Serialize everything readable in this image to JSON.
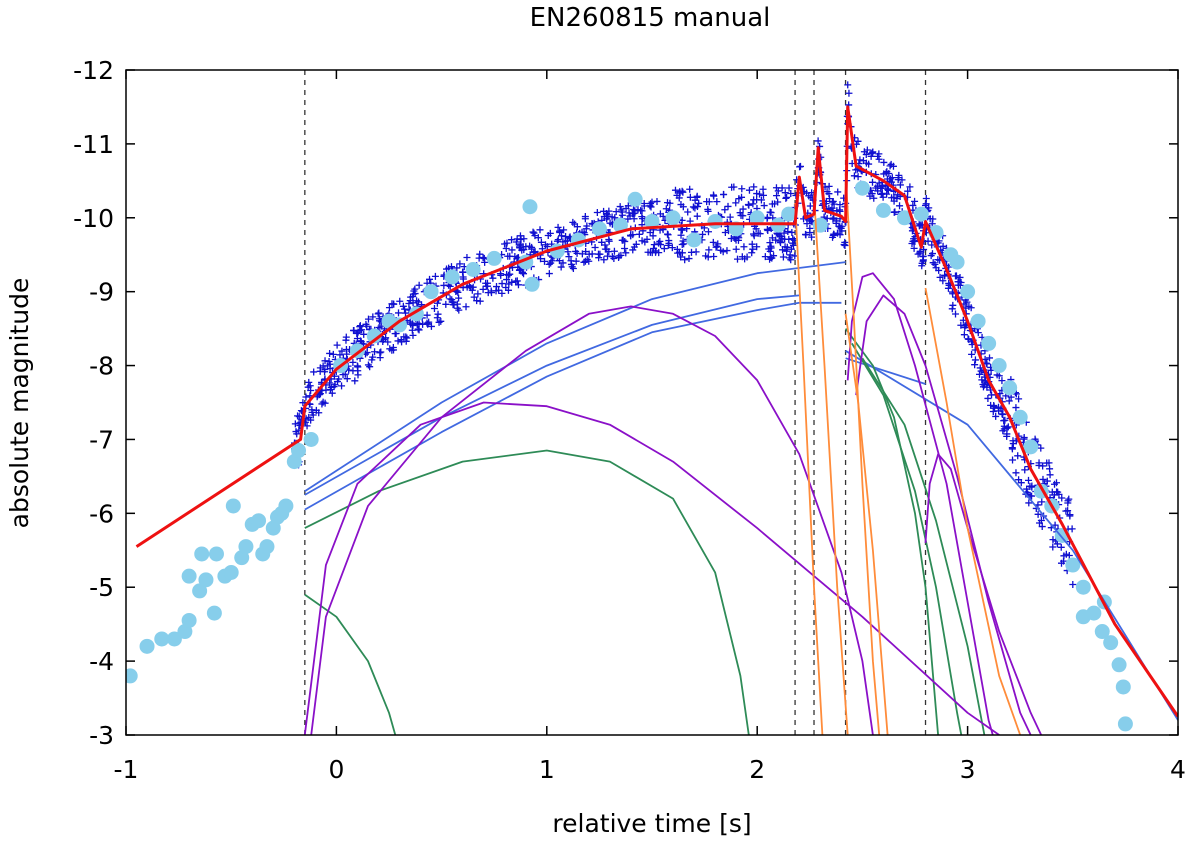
{
  "chart_data": {
    "type": "scatter",
    "title": "EN260815 manual",
    "xlabel": "relative time [s]",
    "ylabel": "absolute magnitude",
    "xlim": [
      -1,
      4
    ],
    "ylim": [
      -3,
      -12
    ],
    "x_ticks": [
      -1,
      0,
      1,
      2,
      3,
      4
    ],
    "y_ticks": [
      -3,
      -4,
      -5,
      -6,
      -7,
      -8,
      -9,
      -10,
      -11,
      -12
    ],
    "x_tick_labels": [
      "-1",
      "0",
      "1",
      "2",
      "3",
      "4"
    ],
    "y_tick_labels": [
      "-3",
      "-4",
      "-5",
      "-6",
      "-7",
      "-8",
      "-9",
      "-10",
      "-11",
      "-12"
    ],
    "vlines": [
      -0.15,
      2.18,
      2.27,
      2.42,
      2.8
    ],
    "colors": {
      "fit": "#ee1111",
      "dots": "#87ceeb",
      "plus": "#1010d0",
      "purple": "#8a10c8",
      "blue": "#4169e1",
      "green": "#2e8b57",
      "orange": "#ff8c3a",
      "vline": "#333333"
    },
    "dots": [
      [
        -0.98,
        -3.8
      ],
      [
        -0.9,
        -4.2
      ],
      [
        -0.83,
        -4.3
      ],
      [
        -0.77,
        -4.3
      ],
      [
        -0.72,
        -4.4
      ],
      [
        -0.7,
        -4.55
      ],
      [
        -0.7,
        -5.15
      ],
      [
        -0.65,
        -4.95
      ],
      [
        -0.64,
        -5.45
      ],
      [
        -0.62,
        -5.1
      ],
      [
        -0.58,
        -4.65
      ],
      [
        -0.57,
        -5.45
      ],
      [
        -0.53,
        -5.15
      ],
      [
        -0.5,
        -5.2
      ],
      [
        -0.49,
        -6.1
      ],
      [
        -0.45,
        -5.4
      ],
      [
        -0.43,
        -5.55
      ],
      [
        -0.4,
        -5.85
      ],
      [
        -0.37,
        -5.9
      ],
      [
        -0.35,
        -5.45
      ],
      [
        -0.33,
        -5.55
      ],
      [
        -0.3,
        -5.8
      ],
      [
        -0.28,
        -5.95
      ],
      [
        -0.26,
        -6.0
      ],
      [
        -0.24,
        -6.1
      ],
      [
        -0.2,
        -6.7
      ],
      [
        -0.18,
        -6.85
      ],
      [
        -0.12,
        -7.0
      ],
      [
        0.02,
        -8.0
      ],
      [
        0.1,
        -8.2
      ],
      [
        0.18,
        -8.4
      ],
      [
        0.25,
        -8.6
      ],
      [
        0.3,
        -8.55
      ],
      [
        0.38,
        -8.7
      ],
      [
        0.45,
        -9.0
      ],
      [
        0.55,
        -9.2
      ],
      [
        0.65,
        -9.3
      ],
      [
        0.75,
        -9.45
      ],
      [
        0.92,
        -10.15
      ],
      [
        0.9,
        -9.4
      ],
      [
        0.93,
        -9.1
      ],
      [
        1.05,
        -9.55
      ],
      [
        1.15,
        -9.7
      ],
      [
        1.25,
        -9.85
      ],
      [
        1.35,
        -9.9
      ],
      [
        1.42,
        -10.25
      ],
      [
        1.5,
        -9.95
      ],
      [
        1.6,
        -10.0
      ],
      [
        1.7,
        -9.7
      ],
      [
        1.8,
        -9.95
      ],
      [
        1.9,
        -9.85
      ],
      [
        2.0,
        -10.0
      ],
      [
        2.1,
        -9.9
      ],
      [
        2.15,
        -10.05
      ],
      [
        2.3,
        -9.9
      ],
      [
        2.5,
        -10.4
      ],
      [
        2.6,
        -10.1
      ],
      [
        2.7,
        -10.0
      ],
      [
        2.78,
        -10.05
      ],
      [
        2.85,
        -9.8
      ],
      [
        2.92,
        -9.5
      ],
      [
        2.95,
        -9.4
      ],
      [
        3.0,
        -9.0
      ],
      [
        3.05,
        -8.6
      ],
      [
        3.1,
        -8.3
      ],
      [
        3.15,
        -8.0
      ],
      [
        3.2,
        -7.7
      ],
      [
        3.25,
        -7.3
      ],
      [
        3.3,
        -6.9
      ],
      [
        3.35,
        -6.3
      ],
      [
        3.4,
        -6.1
      ],
      [
        3.45,
        -5.7
      ],
      [
        3.5,
        -5.3
      ],
      [
        3.55,
        -5.0
      ],
      [
        3.6,
        -4.65
      ],
      [
        3.64,
        -4.4
      ],
      [
        3.68,
        -4.25
      ],
      [
        3.72,
        -3.95
      ],
      [
        3.74,
        -3.65
      ],
      [
        3.75,
        -3.15
      ],
      [
        3.65,
        -4.8
      ],
      [
        3.55,
        -4.6
      ]
    ],
    "fit_curve": [
      [
        -0.95,
        -5.55
      ],
      [
        -0.17,
        -7.0
      ],
      [
        -0.15,
        -7.45
      ],
      [
        0.0,
        -7.95
      ],
      [
        0.3,
        -8.6
      ],
      [
        0.6,
        -9.1
      ],
      [
        1.0,
        -9.55
      ],
      [
        1.4,
        -9.85
      ],
      [
        1.8,
        -9.92
      ],
      [
        2.18,
        -9.92
      ],
      [
        2.2,
        -10.55
      ],
      [
        2.23,
        -10.0
      ],
      [
        2.27,
        -10.05
      ],
      [
        2.29,
        -10.95
      ],
      [
        2.32,
        -10.1
      ],
      [
        2.4,
        -10.02
      ],
      [
        2.42,
        -9.95
      ],
      [
        2.43,
        -11.5
      ],
      [
        2.47,
        -10.7
      ],
      [
        2.6,
        -10.5
      ],
      [
        2.7,
        -10.3
      ],
      [
        2.78,
        -9.6
      ],
      [
        2.8,
        -9.95
      ],
      [
        2.9,
        -9.3
      ],
      [
        3.0,
        -8.6
      ],
      [
        3.1,
        -7.8
      ],
      [
        3.2,
        -7.3
      ],
      [
        3.3,
        -6.6
      ],
      [
        3.45,
        -5.85
      ],
      [
        3.7,
        -4.5
      ],
      [
        4.0,
        -3.25
      ]
    ],
    "blue_curves": [
      [
        [
          -0.15,
          -6.25
        ],
        [
          0.5,
          -7.3
        ],
        [
          1.0,
          -8.0
        ],
        [
          1.5,
          -8.55
        ],
        [
          2.0,
          -8.9
        ],
        [
          2.2,
          -8.95
        ]
      ],
      [
        [
          -0.15,
          -6.05
        ],
        [
          0.5,
          -7.1
        ],
        [
          1.0,
          -7.85
        ],
        [
          1.5,
          -8.45
        ],
        [
          2.0,
          -8.75
        ],
        [
          2.2,
          -8.85
        ],
        [
          2.4,
          -8.85
        ]
      ],
      [
        [
          -0.15,
          -6.3
        ],
        [
          0.5,
          -7.5
        ],
        [
          1.0,
          -8.3
        ],
        [
          1.5,
          -8.9
        ],
        [
          2.0,
          -9.25
        ],
        [
          2.42,
          -9.4
        ]
      ],
      [
        [
          2.42,
          -8.2
        ],
        [
          3.0,
          -7.2
        ],
        [
          3.5,
          -5.5
        ],
        [
          4.0,
          -3.2
        ]
      ],
      [
        [
          2.42,
          -8.1
        ],
        [
          2.8,
          -7.75
        ]
      ]
    ],
    "purple_curves": [
      [
        [
          -0.15,
          -3.0
        ],
        [
          -0.05,
          -5.3
        ],
        [
          0.1,
          -6.4
        ],
        [
          0.4,
          -7.2
        ],
        [
          0.7,
          -7.5
        ],
        [
          1.0,
          -7.45
        ],
        [
          1.3,
          -7.2
        ],
        [
          1.6,
          -6.7
        ],
        [
          2.0,
          -5.8
        ],
        [
          2.5,
          -4.6
        ],
        [
          3.0,
          -3.3
        ],
        [
          3.15,
          -3.0
        ]
      ],
      [
        [
          -0.12,
          -3.0
        ],
        [
          -0.05,
          -4.6
        ],
        [
          0.15,
          -6.1
        ],
        [
          0.5,
          -7.3
        ],
        [
          0.9,
          -8.2
        ],
        [
          1.2,
          -8.7
        ],
        [
          1.4,
          -8.8
        ],
        [
          1.6,
          -8.7
        ],
        [
          1.8,
          -8.4
        ],
        [
          2.0,
          -7.8
        ],
        [
          2.2,
          -6.8
        ],
        [
          2.4,
          -5.2
        ],
        [
          2.5,
          -4.0
        ],
        [
          2.55,
          -3.0
        ]
      ],
      [
        [
          2.43,
          -7.8
        ],
        [
          2.45,
          -8.6
        ],
        [
          2.5,
          -9.2
        ],
        [
          2.55,
          -9.25
        ],
        [
          2.65,
          -8.9
        ],
        [
          2.75,
          -8.0
        ],
        [
          2.9,
          -6.4
        ],
        [
          3.0,
          -4.8
        ],
        [
          3.1,
          -3.2
        ],
        [
          3.12,
          -3.0
        ]
      ],
      [
        [
          2.47,
          -7.6
        ],
        [
          2.52,
          -8.6
        ],
        [
          2.6,
          -8.95
        ],
        [
          2.7,
          -8.7
        ],
        [
          2.8,
          -8.0
        ],
        [
          2.95,
          -6.5
        ],
        [
          3.1,
          -4.8
        ],
        [
          3.25,
          -3.3
        ],
        [
          3.3,
          -3.0
        ]
      ],
      [
        [
          2.8,
          -5.6
        ],
        [
          2.82,
          -6.4
        ],
        [
          2.86,
          -6.8
        ],
        [
          2.92,
          -6.6
        ],
        [
          3.0,
          -5.8
        ],
        [
          3.15,
          -4.4
        ],
        [
          3.3,
          -3.3
        ],
        [
          3.35,
          -3.0
        ]
      ]
    ],
    "green_curves": [
      [
        [
          -0.15,
          -4.9
        ],
        [
          0.0,
          -4.6
        ],
        [
          0.15,
          -4.0
        ],
        [
          0.25,
          -3.3
        ],
        [
          0.28,
          -3.0
        ]
      ],
      [
        [
          -0.15,
          -5.8
        ],
        [
          0.2,
          -6.3
        ],
        [
          0.6,
          -6.7
        ],
        [
          1.0,
          -6.85
        ],
        [
          1.3,
          -6.7
        ],
        [
          1.6,
          -6.2
        ],
        [
          1.8,
          -5.2
        ],
        [
          1.92,
          -3.8
        ],
        [
          1.96,
          -3.0
        ]
      ],
      [
        [
          2.42,
          -8.5
        ],
        [
          2.55,
          -8.0
        ],
        [
          2.65,
          -7.3
        ],
        [
          2.75,
          -6.0
        ],
        [
          2.8,
          -5.0
        ],
        [
          2.86,
          -3.0
        ]
      ],
      [
        [
          2.45,
          -8.3
        ],
        [
          2.6,
          -7.6
        ],
        [
          2.75,
          -6.3
        ],
        [
          2.85,
          -5.0
        ],
        [
          2.95,
          -3.3
        ],
        [
          2.97,
          -3.0
        ]
      ],
      [
        [
          2.5,
          -8.1
        ],
        [
          2.7,
          -7.2
        ],
        [
          2.85,
          -5.9
        ],
        [
          3.0,
          -4.2
        ],
        [
          3.08,
          -3.0
        ]
      ]
    ],
    "orange_curves": [
      [
        [
          2.18,
          -10.2
        ],
        [
          2.22,
          -8.0
        ],
        [
          2.27,
          -5.0
        ],
        [
          2.31,
          -3.0
        ]
      ],
      [
        [
          2.27,
          -10.3
        ],
        [
          2.32,
          -8.0
        ],
        [
          2.38,
          -5.0
        ],
        [
          2.43,
          -3.0
        ]
      ],
      [
        [
          2.42,
          -10.6
        ],
        [
          2.46,
          -8.6
        ],
        [
          2.5,
          -6.4
        ],
        [
          2.55,
          -4.0
        ],
        [
          2.58,
          -3.0
        ]
      ],
      [
        [
          2.42,
          -8.7
        ],
        [
          2.48,
          -7.5
        ],
        [
          2.55,
          -5.5
        ],
        [
          2.62,
          -3.0
        ]
      ],
      [
        [
          2.8,
          -9.05
        ],
        [
          2.9,
          -7.5
        ],
        [
          3.0,
          -5.8
        ],
        [
          3.15,
          -3.8
        ],
        [
          3.25,
          -3.0
        ]
      ]
    ]
  }
}
